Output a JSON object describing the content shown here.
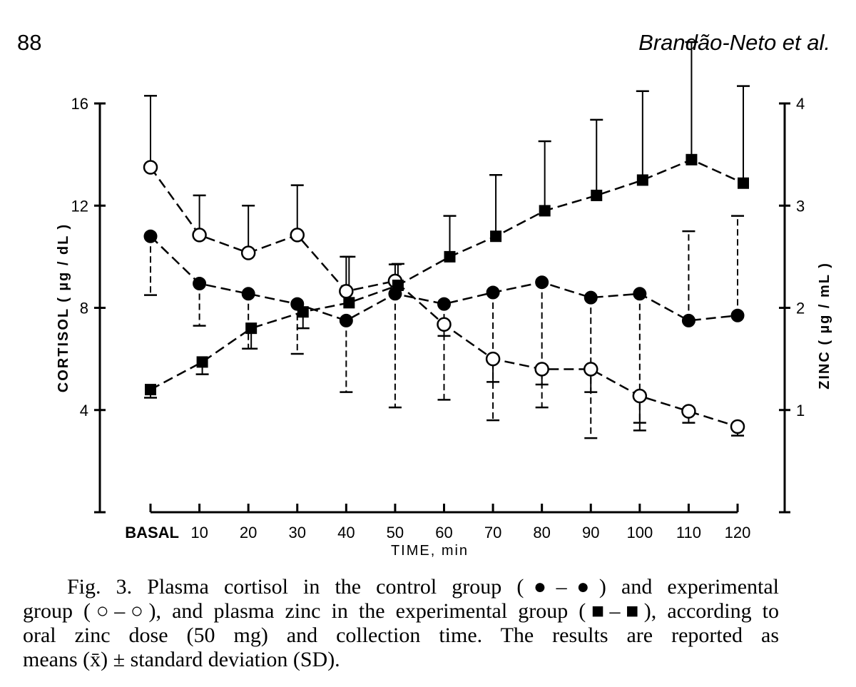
{
  "header": {
    "page_number": "88",
    "running_head": "Brandão-Neto et al."
  },
  "chart_data": {
    "type": "line",
    "title": "",
    "xlabel": "TIME, min",
    "categories": [
      "BASAL",
      "10",
      "20",
      "30",
      "40",
      "50",
      "60",
      "70",
      "80",
      "90",
      "100",
      "110",
      "120"
    ],
    "y_left": {
      "label": "CORTISOL ( µg / dL )",
      "range": [
        0,
        16
      ],
      "ticks": [
        "4",
        "8",
        "12",
        "16"
      ]
    },
    "y_right": {
      "label": "ZINC ( µg / mL )",
      "range": [
        0,
        4
      ],
      "ticks": [
        "1",
        "2",
        "3",
        "4"
      ]
    },
    "series": [
      {
        "name": "control cortisol (●–●)",
        "axis": "left",
        "marker": "filled-circle",
        "values": [
          10.8,
          8.95,
          8.55,
          8.15,
          7.5,
          8.55,
          8.15,
          8.6,
          9.0,
          8.4,
          8.55,
          7.5,
          7.7
        ],
        "error_direction": "down",
        "error_bounds": [
          8.5,
          7.3,
          6.4,
          6.2,
          4.7,
          4.1,
          4.4,
          3.6,
          4.1,
          2.9,
          3.2,
          11.0,
          11.6
        ]
      },
      {
        "name": "experimental cortisol (○–○)",
        "axis": "left",
        "marker": "open-circle",
        "values": [
          13.5,
          10.85,
          10.15,
          10.85,
          8.65,
          9.05,
          7.35,
          6.0,
          5.6,
          5.6,
          4.55,
          3.95,
          3.35
        ],
        "error_direction": "up-down",
        "error_bounds": [
          16.3,
          12.4,
          12.0,
          12.8,
          10.0,
          9.7,
          6.9,
          5.1,
          5.0,
          4.7,
          3.5,
          3.5,
          3.0
        ]
      },
      {
        "name": "experimental zinc (■–■)",
        "axis": "right",
        "marker": "filled-square",
        "values": [
          1.2,
          1.47,
          1.8,
          1.96,
          2.05,
          2.22,
          2.5,
          2.7,
          2.95,
          3.1,
          3.25,
          3.45,
          3.22
        ],
        "error_direction": "up-down",
        "error_bounds": [
          1.12,
          1.35,
          1.6,
          1.8,
          2.5,
          2.43,
          2.9,
          3.3,
          3.63,
          3.84,
          4.12,
          4.6,
          4.17
        ]
      }
    ],
    "grid": false,
    "legend": "caption"
  },
  "caption": {
    "lines": [
      "Fig. 3.   Plasma cortisol in the control group (●–●) and experimental",
      "group (○–○), and plasma zinc in the experimental group (■–■), according to",
      "oral zinc dose (50 mg) and collection time. The results are reported as",
      "means (x̄) ± standard deviation (SD)."
    ]
  }
}
